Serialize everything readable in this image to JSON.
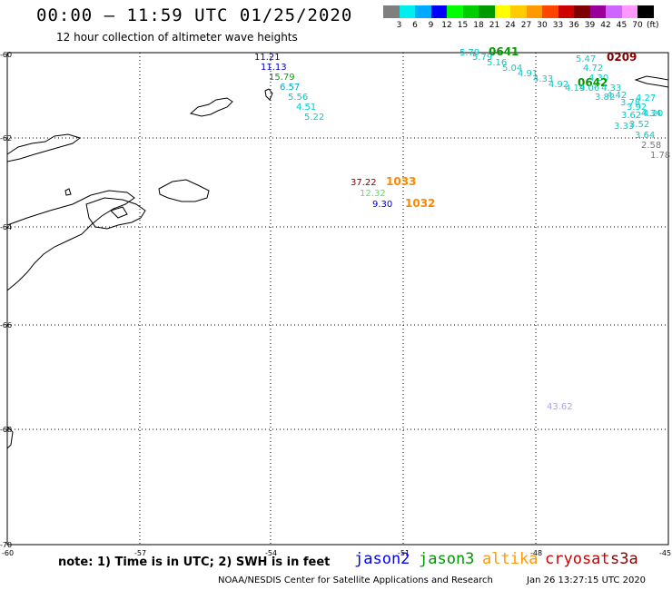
{
  "header": {
    "title": "00:00 – 11:59 UTC 01/25/2020",
    "subtitle": "12 hour collection of altimeter wave heights"
  },
  "colorbar": {
    "colors": [
      "#7f7f7f",
      "#00eeee",
      "#00aaff",
      "#0000ff",
      "#00ff00",
      "#00cc00",
      "#009900",
      "#ffff00",
      "#ffcc00",
      "#ff9900",
      "#ff4400",
      "#cc0000",
      "#7f0000",
      "#990099",
      "#cc66ff",
      "#ff99ff",
      "#000000"
    ],
    "ticks": [
      "3",
      "6",
      "9",
      "12",
      "15",
      "18",
      "21",
      "24",
      "27",
      "30",
      "33",
      "36",
      "39",
      "42",
      "45",
      "70"
    ],
    "unit": "(ft)"
  },
  "map": {
    "lat_labels": [
      "-60",
      "-62",
      "-64",
      "-66",
      "-68",
      "-70"
    ],
    "lon_labels": [
      "-60",
      "-57",
      "-54",
      "-51",
      "-48",
      "-45"
    ],
    "readings": [
      {
        "text": "11.21",
        "color": "#0000cc"
      },
      {
        "text": "11.13",
        "color": "#0000cc"
      },
      {
        "text": "15.79",
        "color": "#00aa00"
      },
      {
        "text": "6.57",
        "color": "#00aacc"
      },
      {
        "text": "5.56",
        "color": "#00cccc"
      },
      {
        "text": "4.51",
        "color": "#00cccc"
      },
      {
        "text": "5.22",
        "color": "#00cccc"
      },
      {
        "text": "37.22",
        "color": "#880000"
      },
      {
        "text": "1033",
        "color": "#ff8800"
      },
      {
        "text": "12.32",
        "color": "#66dd66"
      },
      {
        "text": "9.30",
        "color": "#0000cc"
      },
      {
        "text": "1032",
        "color": "#ff8800"
      },
      {
        "text": "5.79",
        "color": "#00cccc"
      },
      {
        "text": "0641",
        "color": "#009900"
      },
      {
        "text": "5.79",
        "color": "#00cccc"
      },
      {
        "text": "5.16",
        "color": "#00cccc"
      },
      {
        "text": "5.04",
        "color": "#00cccc"
      },
      {
        "text": "4.91",
        "color": "#00cccc"
      },
      {
        "text": "4.33",
        "color": "#00cccc"
      },
      {
        "text": "4.92",
        "color": "#00cccc"
      },
      {
        "text": "5.47",
        "color": "#00cccc"
      },
      {
        "text": "0209",
        "color": "#880000"
      },
      {
        "text": "4.72",
        "color": "#00cccc"
      },
      {
        "text": "4.30",
        "color": "#00cccc"
      },
      {
        "text": "0642",
        "color": "#009900"
      },
      {
        "text": "4.19",
        "color": "#00cccc"
      },
      {
        "text": "4.06",
        "color": "#00cccc"
      },
      {
        "text": "4.33",
        "color": "#00cccc"
      },
      {
        "text": "3.82",
        "color": "#00cccc"
      },
      {
        "text": "4.42",
        "color": "#00cccc"
      },
      {
        "text": "4.27",
        "color": "#00cccc"
      },
      {
        "text": "4.20",
        "color": "#00cccc"
      },
      {
        "text": "3.78",
        "color": "#00cccc"
      },
      {
        "text": "3.92",
        "color": "#00cccc"
      },
      {
        "text": "3.62",
        "color": "#00cccc"
      },
      {
        "text": "4.34",
        "color": "#00cccc"
      },
      {
        "text": "3.52",
        "color": "#00cccc"
      },
      {
        "text": "3.33",
        "color": "#00cccc"
      },
      {
        "text": "3.64",
        "color": "#00cccc"
      },
      {
        "text": "2.58",
        "color": "#777777"
      },
      {
        "text": "1.78",
        "color": "#777777"
      },
      {
        "text": "43.62",
        "color": "#aaaadd"
      }
    ]
  },
  "footer": {
    "note": "note: 1) Time is in UTC; 2) SWH is in feet",
    "satellites": [
      {
        "name": "jason2",
        "color": "#0000ff"
      },
      {
        "name": "jason3",
        "color": "#009900"
      },
      {
        "name": "altika",
        "color": "#ff9900"
      },
      {
        "name": "cryosat",
        "color": "#cc0000"
      },
      {
        "name": "s3a",
        "color": "#880000"
      }
    ],
    "credit": "NOAA/NESDIS Center for Satellite Applications and Research",
    "timestamp": "Jan 26 13:27:15 UTC 2020"
  }
}
